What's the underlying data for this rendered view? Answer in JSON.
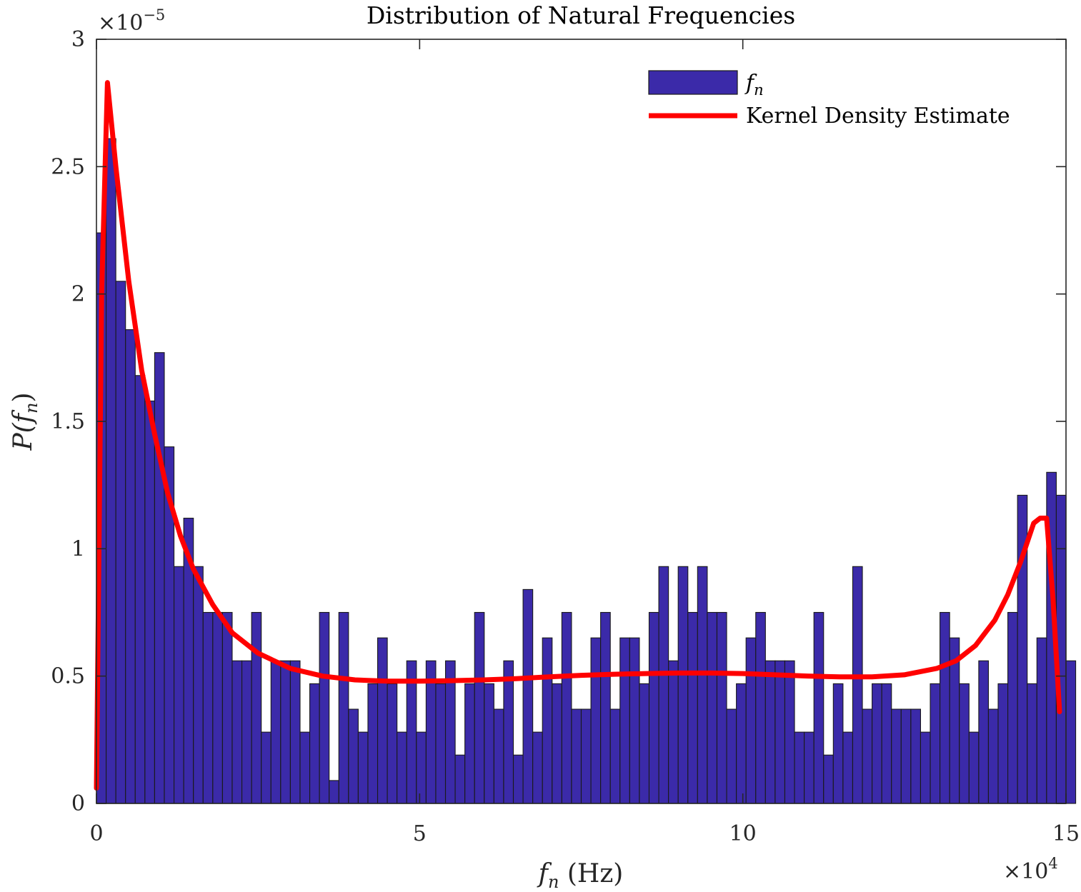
{
  "chart_data": {
    "type": "bar",
    "title": "Distribution of Natural Frequencies",
    "xlabel": "f_n (Hz)",
    "xlabel_parts": {
      "var": "f",
      "sub": "n",
      "unit": " (Hz)"
    },
    "ylabel_parts": {
      "var": "P(f",
      "sub": "n",
      "close": ")"
    },
    "x_multiplier": {
      "base": "×10",
      "exp": "4"
    },
    "y_multiplier": {
      "base": "×10",
      "exp": "−5"
    },
    "xlim": [
      0,
      15
    ],
    "ylim": [
      0,
      3
    ],
    "x_ticks": [
      0,
      5,
      10,
      15
    ],
    "x_tick_labels": [
      "0",
      "5",
      "10",
      "15"
    ],
    "y_ticks": [
      0,
      0.5,
      1,
      1.5,
      2,
      2.5,
      3
    ],
    "y_tick_labels": [
      "0",
      "0.5",
      "1",
      "1.5",
      "2",
      "2.5",
      "3"
    ],
    "grid": false,
    "legend_position": "top-right",
    "bin_width": 0.15,
    "histogram_color": "#3b2aa9",
    "kde_color": "#ff0000",
    "series": [
      {
        "name": "f_n",
        "legend_parts": {
          "var": "f",
          "sub": "n"
        },
        "kind": "histogram",
        "values": [
          2.24,
          2.61,
          2.05,
          1.86,
          1.68,
          1.58,
          1.77,
          1.4,
          0.93,
          1.12,
          0.93,
          0.75,
          0.75,
          0.75,
          0.56,
          0.56,
          0.75,
          0.28,
          0.56,
          0.56,
          0.56,
          0.28,
          0.47,
          0.75,
          0.09,
          0.75,
          0.37,
          0.28,
          0.47,
          0.65,
          0.47,
          0.28,
          0.56,
          0.28,
          0.56,
          0.47,
          0.56,
          0.19,
          0.47,
          0.75,
          0.47,
          0.37,
          0.56,
          0.19,
          0.84,
          0.28,
          0.65,
          0.47,
          0.75,
          0.37,
          0.37,
          0.65,
          0.75,
          0.37,
          0.65,
          0.65,
          0.47,
          0.75,
          0.93,
          0.56,
          0.93,
          0.75,
          0.93,
          0.75,
          0.75,
          0.37,
          0.47,
          0.65,
          0.75,
          0.56,
          0.56,
          0.56,
          0.28,
          0.28,
          0.75,
          0.19,
          0.47,
          0.28,
          0.93,
          0.37,
          0.47,
          0.47,
          0.37,
          0.37,
          0.37,
          0.28,
          0.47,
          0.75,
          0.65,
          0.47,
          0.28,
          0.56,
          0.37,
          0.47,
          0.75,
          1.21,
          0.47,
          0.65,
          1.3,
          1.21,
          0.56
        ]
      },
      {
        "name": "Kernel Density Estimate",
        "kind": "line",
        "x": [
          0.0,
          0.08,
          0.17,
          0.3,
          0.5,
          0.7,
          0.9,
          1.1,
          1.3,
          1.5,
          1.8,
          2.1,
          2.5,
          3.0,
          3.5,
          4.0,
          4.5,
          5.0,
          5.5,
          6.0,
          6.5,
          7.0,
          7.5,
          8.0,
          8.5,
          9.0,
          9.5,
          10.0,
          10.5,
          11.0,
          11.5,
          12.0,
          12.5,
          13.0,
          13.3,
          13.6,
          13.9,
          14.1,
          14.3,
          14.5,
          14.6,
          14.7,
          14.8,
          14.9
        ],
        "values": [
          0.06,
          2.0,
          2.83,
          2.5,
          2.05,
          1.7,
          1.45,
          1.22,
          1.05,
          0.92,
          0.78,
          0.67,
          0.59,
          0.53,
          0.5,
          0.485,
          0.48,
          0.48,
          0.482,
          0.485,
          0.49,
          0.497,
          0.503,
          0.507,
          0.51,
          0.512,
          0.512,
          0.51,
          0.505,
          0.5,
          0.497,
          0.497,
          0.505,
          0.53,
          0.56,
          0.62,
          0.72,
          0.82,
          0.95,
          1.1,
          1.12,
          1.12,
          0.8,
          0.36
        ]
      }
    ]
  }
}
